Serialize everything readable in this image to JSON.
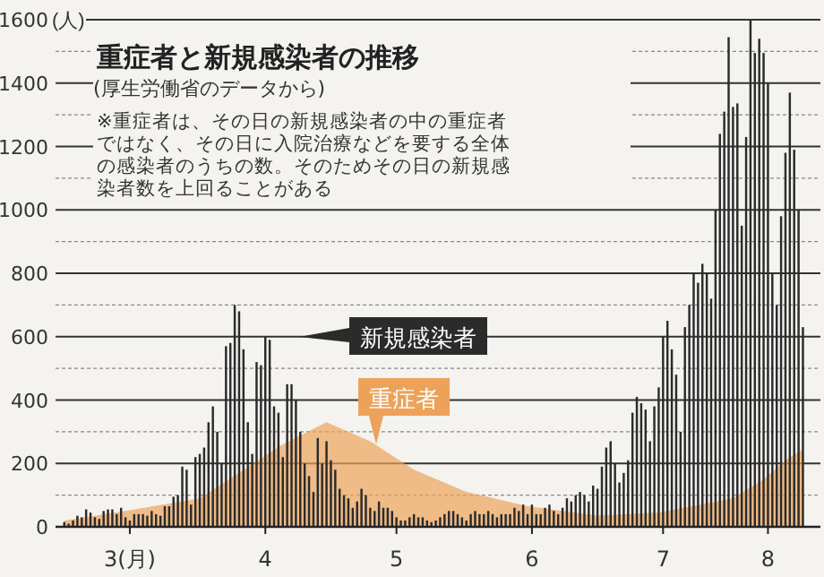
{
  "chart_data": {
    "type": "bar",
    "title": "重症者と新規感染者の推移",
    "subtitle": "(厚生労働省のデータから)",
    "annotations": [
      "※重症者は、その日の新規感染者の中の重症者ではなく、その日に入院治療などを要する全体の感染者のうちの数。そのためその日の新規感染者数を上回ることがある"
    ],
    "ylabel": "(人)",
    "x": [
      "--03-01",
      "--03-02",
      "--03-03",
      "--03-04",
      "--03-05",
      "--03-06",
      "--03-07",
      "--03-08",
      "--03-09",
      "--03-10",
      "--03-11",
      "--03-12",
      "--03-13",
      "--03-14",
      "--03-15",
      "--03-16",
      "--03-17",
      "--03-18",
      "--03-19",
      "--03-20",
      "--03-21",
      "--03-22",
      "--03-23",
      "--03-24",
      "--03-25",
      "--03-26",
      "--03-27",
      "--03-28",
      "--03-29",
      "--03-30",
      "--03-31",
      "--04-01",
      "--04-02",
      "--04-03",
      "--04-04",
      "--04-05",
      "--04-06",
      "--04-07",
      "--04-08",
      "--04-09",
      "--04-10",
      "--04-11",
      "--04-12",
      "--04-13",
      "--04-14",
      "--04-15",
      "--04-16",
      "--04-17",
      "--04-18",
      "--04-19",
      "--04-20",
      "--04-21",
      "--04-22",
      "--04-23",
      "--04-24",
      "--04-25",
      "--04-26",
      "--04-27",
      "--04-28",
      "--04-29",
      "--04-30",
      "--05-01",
      "--05-02",
      "--05-03",
      "--05-04",
      "--05-05",
      "--05-06",
      "--05-07",
      "--05-08",
      "--05-09",
      "--05-10",
      "--05-11",
      "--05-12",
      "--05-13",
      "--05-14",
      "--05-15",
      "--05-16",
      "--05-17",
      "--05-18",
      "--05-19",
      "--05-20",
      "--05-21",
      "--05-22",
      "--05-23",
      "--05-24",
      "--05-25",
      "--05-26",
      "--05-27",
      "--05-28",
      "--05-29",
      "--05-30",
      "--05-31",
      "--06-01",
      "--06-02",
      "--06-03",
      "--06-04",
      "--06-05",
      "--06-06",
      "--06-07",
      "--06-08",
      "--06-09",
      "--06-10",
      "--06-11",
      "--06-12",
      "--06-13",
      "--06-14",
      "--06-15",
      "--06-16",
      "--06-17",
      "--06-18",
      "--06-19",
      "--06-20",
      "--06-21",
      "--06-22",
      "--06-23",
      "--06-24",
      "--06-25",
      "--06-26",
      "--06-27",
      "--06-28",
      "--06-29",
      "--06-30",
      "--07-01",
      "--07-02",
      "--07-03",
      "--07-04",
      "--07-05",
      "--07-06",
      "--07-07",
      "--07-08",
      "--07-09",
      "--07-10",
      "--07-11",
      "--07-12",
      "--07-13",
      "--07-14",
      "--07-15",
      "--07-16",
      "--07-17",
      "--07-18",
      "--07-19",
      "--07-20",
      "--07-21",
      "--07-22",
      "--07-23",
      "--07-24",
      "--07-25",
      "--07-26",
      "--07-27",
      "--07-28",
      "--07-29",
      "--07-30",
      "--07-31",
      "--08-01",
      "--08-02",
      "--08-03",
      "--08-04",
      "--08-05",
      "--08-06",
      "--08-07",
      "--08-08",
      "--08-09",
      "--08-10",
      "--08-11",
      "--08-12",
      "--08-13",
      "--08-14",
      "--08-15",
      "--08-16",
      "--08-17"
    ],
    "series": [
      {
        "name": "重症者",
        "type": "area",
        "color": "#eda25a",
        "x": [
          "--03-01",
          "--03-15",
          "--04-01",
          "--04-10",
          "--04-20",
          "--04-30",
          "--05-10",
          "--05-20",
          "--06-01",
          "--06-15",
          "--07-01",
          "--07-15",
          "--08-01",
          "--08-08",
          "--08-13",
          "--08-17"
        ],
        "values": [
          20,
          50,
          90,
          170,
          260,
          330,
          270,
          180,
          110,
          65,
          35,
          45,
          90,
          150,
          210,
          245
        ]
      },
      {
        "name": "新規感染者",
        "color": "#2b2b2b",
        "values": [
          15,
          10,
          20,
          35,
          30,
          55,
          45,
          30,
          25,
          50,
          55,
          55,
          40,
          60,
          30,
          20,
          40,
          40,
          40,
          35,
          50,
          40,
          35,
          65,
          65,
          95,
          100,
          190,
          180,
          70,
          220,
          230,
          250,
          330,
          380,
          300,
          200,
          570,
          580,
          700,
          680,
          560,
          330,
          230,
          520,
          510,
          600,
          590,
          380,
          360,
          220,
          450,
          450,
          400,
          300,
          200,
          160,
          110,
          280,
          200,
          270,
          210,
          180,
          120,
          100,
          90,
          60,
          80,
          120,
          100,
          60,
          50,
          80,
          60,
          60,
          50,
          30,
          20,
          20,
          30,
          40,
          30,
          30,
          20,
          15,
          20,
          30,
          40,
          50,
          50,
          40,
          30,
          20,
          40,
          50,
          40,
          40,
          50,
          40,
          30,
          40,
          40,
          40,
          60,
          50,
          70,
          40,
          70,
          40,
          40,
          60,
          70,
          50,
          40,
          60,
          90,
          80,
          100,
          110,
          100,
          80,
          130,
          120,
          190,
          250,
          270,
          200,
          140,
          170,
          210,
          360,
          410,
          390,
          370,
          270,
          380,
          440,
          600,
          650,
          560,
          480,
          300,
          630,
          700,
          800,
          770,
          830,
          800,
          720,
          1000,
          1240,
          1310,
          1545,
          1325,
          1336,
          950,
          1230,
          1600,
          1495,
          1540,
          1495,
          1400,
          800,
          700,
          980,
          1180,
          1370,
          1190,
          1000,
          630
        ]
      }
    ],
    "xlim": [
      "--02-28",
      "--08-21"
    ],
    "xticks": [
      {
        "value": "--03-16",
        "label": "3(月)"
      },
      {
        "value": "--04-16",
        "label": "4"
      },
      {
        "value": "--05-16",
        "label": "5"
      },
      {
        "value": "--06-16",
        "label": "6"
      },
      {
        "value": "--07-16",
        "label": "7"
      },
      {
        "value": "--08-09",
        "label": "8"
      }
    ],
    "ylim": [
      0,
      1600
    ],
    "yticks": [
      0,
      {
        "value": 100,
        "label": null
      },
      200,
      {
        "value": 300,
        "label": null
      },
      400,
      {
        "value": 500,
        "label": null
      },
      600,
      {
        "value": 700,
        "label": null
      },
      800,
      {
        "value": 900,
        "label": null
      },
      1000,
      {
        "value": 1100,
        "label": null
      },
      1200,
      {
        "value": 1300,
        "label": null
      },
      1400,
      {
        "value": 1500,
        "label": null
      },
      1600
    ],
    "grid": "y",
    "legend": "center"
  }
}
